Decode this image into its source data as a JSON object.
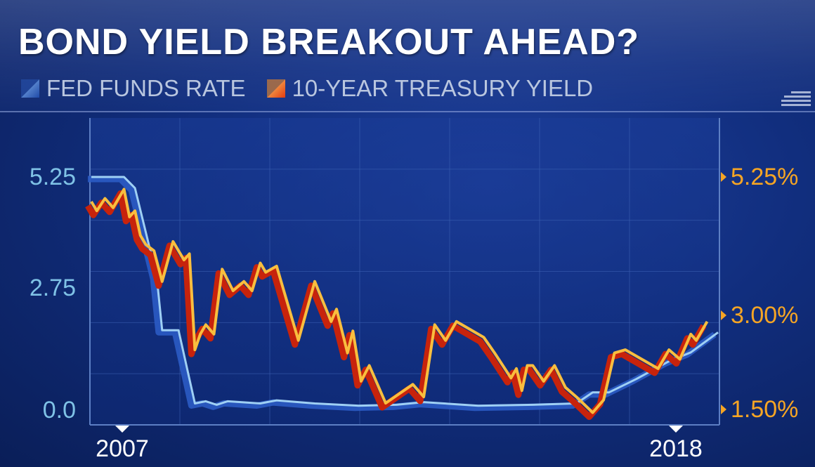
{
  "header": {
    "title": "BOND YIELD BREAKOUT AHEAD?",
    "corner_icon": "menu-lines-icon"
  },
  "chart_data": {
    "type": "line",
    "title": "BOND YIELD BREAKOUT AHEAD?",
    "x_tick_labels": [
      "2007",
      "2018"
    ],
    "xlim": [
      2006.9,
      2018.4
    ],
    "left_axis": {
      "tick_labels": [
        "5.25",
        "2.75",
        "0.0"
      ],
      "ticks": [
        5.25,
        2.75,
        0.0
      ],
      "ylim": [
        0,
        5.25
      ]
    },
    "right_axis": {
      "tick_labels": [
        "5.25%",
        "3.00%",
        "1.50%"
      ],
      "ticks": [
        5.25,
        3.0,
        1.5
      ]
    },
    "grid": true,
    "legend_position": "top-left",
    "series": [
      {
        "name": "FED FUNDS RATE",
        "axis": "left",
        "color": "#4a8fd6",
        "points": [
          [
            2006.9,
            5.25
          ],
          [
            2007.5,
            5.25
          ],
          [
            2007.7,
            5.0
          ],
          [
            2008.1,
            3.0
          ],
          [
            2008.2,
            1.8
          ],
          [
            2008.5,
            1.8
          ],
          [
            2008.8,
            0.15
          ],
          [
            2009.0,
            0.2
          ],
          [
            2009.2,
            0.12
          ],
          [
            2009.4,
            0.2
          ],
          [
            2010.0,
            0.15
          ],
          [
            2010.3,
            0.22
          ],
          [
            2011.0,
            0.15
          ],
          [
            2011.8,
            0.1
          ],
          [
            2012.5,
            0.12
          ],
          [
            2013.0,
            0.18
          ],
          [
            2014.0,
            0.1
          ],
          [
            2015.0,
            0.12
          ],
          [
            2015.8,
            0.15
          ],
          [
            2016.1,
            0.4
          ],
          [
            2016.4,
            0.4
          ],
          [
            2016.9,
            0.7
          ],
          [
            2017.5,
            1.1
          ],
          [
            2017.9,
            1.3
          ],
          [
            2018.4,
            1.75
          ]
        ]
      },
      {
        "name": "10-YEAR TREASURY YIELD",
        "axis": "right",
        "color": "#f6a524",
        "points": [
          [
            2006.9,
            4.85
          ],
          [
            2007.0,
            4.7
          ],
          [
            2007.15,
            4.9
          ],
          [
            2007.3,
            4.75
          ],
          [
            2007.5,
            5.05
          ],
          [
            2007.6,
            4.6
          ],
          [
            2007.7,
            4.7
          ],
          [
            2007.8,
            4.3
          ],
          [
            2007.9,
            4.15
          ],
          [
            2008.05,
            4.05
          ],
          [
            2008.2,
            3.55
          ],
          [
            2008.4,
            4.2
          ],
          [
            2008.6,
            3.9
          ],
          [
            2008.7,
            4.0
          ],
          [
            2008.8,
            2.45
          ],
          [
            2008.9,
            2.7
          ],
          [
            2009.0,
            2.85
          ],
          [
            2009.15,
            2.7
          ],
          [
            2009.3,
            3.75
          ],
          [
            2009.5,
            3.4
          ],
          [
            2009.7,
            3.55
          ],
          [
            2009.85,
            3.4
          ],
          [
            2010.0,
            3.85
          ],
          [
            2010.1,
            3.7
          ],
          [
            2010.3,
            3.8
          ],
          [
            2010.7,
            2.6
          ],
          [
            2011.0,
            3.55
          ],
          [
            2011.3,
            2.9
          ],
          [
            2011.4,
            3.1
          ],
          [
            2011.6,
            2.4
          ],
          [
            2011.7,
            2.75
          ],
          [
            2011.85,
            1.95
          ],
          [
            2012.0,
            2.2
          ],
          [
            2012.3,
            1.6
          ],
          [
            2012.8,
            1.9
          ],
          [
            2013.0,
            1.7
          ],
          [
            2013.2,
            2.85
          ],
          [
            2013.4,
            2.6
          ],
          [
            2013.6,
            2.9
          ],
          [
            2014.1,
            2.65
          ],
          [
            2014.3,
            2.4
          ],
          [
            2014.6,
            2.0
          ],
          [
            2014.7,
            2.15
          ],
          [
            2014.8,
            1.8
          ],
          [
            2014.9,
            2.2
          ],
          [
            2015.0,
            2.2
          ],
          [
            2015.2,
            1.95
          ],
          [
            2015.4,
            2.2
          ],
          [
            2015.6,
            1.85
          ],
          [
            2015.8,
            1.7
          ],
          [
            2016.1,
            1.45
          ],
          [
            2016.3,
            1.65
          ],
          [
            2016.5,
            2.4
          ],
          [
            2016.7,
            2.45
          ],
          [
            2017.0,
            2.3
          ],
          [
            2017.3,
            2.15
          ],
          [
            2017.5,
            2.45
          ],
          [
            2017.7,
            2.3
          ],
          [
            2017.9,
            2.7
          ],
          [
            2018.0,
            2.6
          ],
          [
            2018.2,
            2.9
          ]
        ]
      }
    ]
  }
}
